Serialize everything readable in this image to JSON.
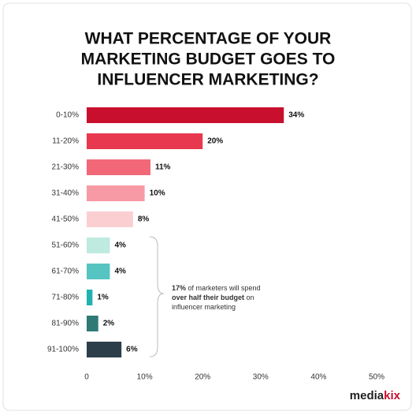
{
  "chart_data": {
    "type": "hbar",
    "title": [
      "WHAT PERCENTAGE OF YOUR",
      "MARKETING BUDGET GOES TO",
      "INFLUENCER MARKETING?"
    ],
    "categories": [
      "0-10%",
      "11-20%",
      "21-30%",
      "31-40%",
      "41-50%",
      "51-60%",
      "61-70%",
      "71-80%",
      "81-90%",
      "91-100%"
    ],
    "values": [
      34,
      20,
      11,
      10,
      8,
      4,
      4,
      1,
      2,
      6
    ],
    "value_labels": [
      "34%",
      "20%",
      "11%",
      "10%",
      "8%",
      "4%",
      "4%",
      "1%",
      "2%",
      "6%"
    ],
    "colors": [
      "#c8102e",
      "#e8384f",
      "#f26878",
      "#f79aa5",
      "#fbcfd2",
      "#bfeae0",
      "#56c4c0",
      "#20b2b0",
      "#2e7a74",
      "#2c3e4a"
    ],
    "xlim": [
      0,
      50
    ],
    "xticks": [
      0,
      {
        "value": 10,
        "label": "10%"
      },
      {
        "value": 20,
        "label": "20%"
      },
      {
        "value": 30,
        "label": "30%"
      },
      {
        "value": 40,
        "label": "40%"
      },
      {
        "value": 50,
        "label": "50%"
      }
    ],
    "grid": false,
    "annotation": [
      "17%",
      "of marketers will spend",
      "over half their budget",
      "on",
      "influencer marketing"
    ],
    "logo": [
      "media",
      "kix"
    ]
  }
}
